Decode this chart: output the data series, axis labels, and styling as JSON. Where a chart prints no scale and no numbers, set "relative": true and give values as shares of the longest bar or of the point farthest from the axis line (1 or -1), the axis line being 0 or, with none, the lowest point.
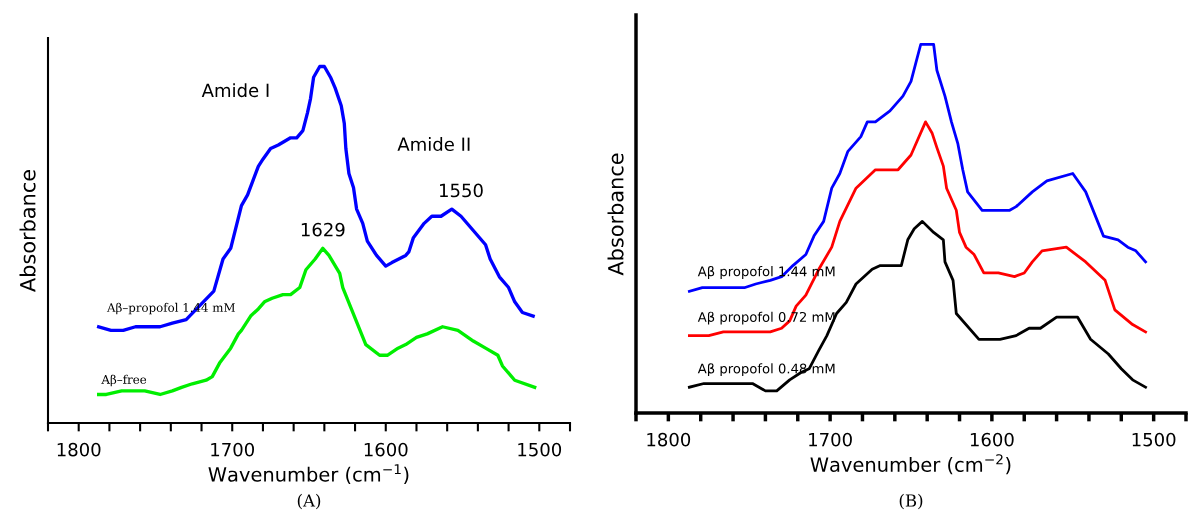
{
  "chart_data": [
    {
      "type": "line",
      "relative": true,
      "xlabel": "Wavenumber (cm$^{−1}$)",
      "ylabel": "Absorbance",
      "xlim": [
        1820,
        1480
      ],
      "xticks": [
        {
          "value": 1820,
          "label": null
        },
        1800,
        {
          "value": 1780,
          "label": null
        },
        {
          "value": 1760,
          "label": null
        },
        {
          "value": 1740,
          "label": null
        },
        {
          "value": 1720,
          "label": null
        },
        1700,
        {
          "value": 1680,
          "label": null
        },
        {
          "value": 1660,
          "label": null
        },
        {
          "value": 1640,
          "label": null
        },
        {
          "value": 1620,
          "label": null
        },
        1600,
        {
          "value": 1580,
          "label": null
        },
        {
          "value": 1560,
          "label": null
        },
        {
          "value": 1540,
          "label": null
        },
        {
          "value": 1520,
          "label": null
        },
        1500,
        {
          "value": 1480,
          "label": null
        }
      ],
      "grid": false,
      "legend": false,
      "series": [
        {
          "name": "Aβ–propofol 1.44 mM",
          "color": "#0000ff",
          "x": [
            1787,
            1779,
            1771,
            1763,
            1747,
            1739,
            1730,
            1721,
            1712,
            1706,
            1701,
            1694,
            1690,
            1683,
            1680,
            1675,
            1670,
            1662,
            1658,
            1654,
            1651,
            1649,
            1647,
            1643,
            1640,
            1636,
            1633,
            1629,
            1627,
            1626,
            1624,
            1621,
            1619,
            1615,
            1612,
            1606,
            1600,
            1596,
            1587,
            1585,
            1582,
            1575,
            1570,
            1564,
            1557,
            1551,
            1543,
            1535,
            1532,
            1526,
            1520,
            1516,
            1511,
            1504
          ],
          "values": [
            0.27,
            0.26,
            0.26,
            0.27,
            0.27,
            0.28,
            0.29,
            0.33,
            0.37,
            0.46,
            0.49,
            0.61,
            0.64,
            0.72,
            0.74,
            0.77,
            0.78,
            0.8,
            0.8,
            0.82,
            0.87,
            0.91,
            0.97,
            1.0,
            1.0,
            0.97,
            0.94,
            0.89,
            0.84,
            0.77,
            0.7,
            0.66,
            0.6,
            0.56,
            0.51,
            0.47,
            0.44,
            0.45,
            0.47,
            0.48,
            0.52,
            0.56,
            0.58,
            0.58,
            0.6,
            0.58,
            0.54,
            0.5,
            0.46,
            0.41,
            0.38,
            0.34,
            0.31,
            0.3
          ]
        },
        {
          "name": "Aβ–free",
          "color": "#00ee00",
          "x": [
            1787,
            1782,
            1772,
            1763,
            1757,
            1747,
            1739,
            1733,
            1726,
            1717,
            1713,
            1708,
            1701,
            1696,
            1694,
            1688,
            1683,
            1679,
            1674,
            1667,
            1662,
            1656,
            1652,
            1646,
            1641,
            1637,
            1630,
            1628,
            1613,
            1604,
            1599,
            1592,
            1587,
            1580,
            1573,
            1563,
            1553,
            1543,
            1535,
            1527,
            1524,
            1516,
            1503
          ],
          "values": [
            0.08,
            0.08,
            0.09,
            0.09,
            0.09,
            0.08,
            0.09,
            0.1,
            0.11,
            0.12,
            0.13,
            0.17,
            0.21,
            0.25,
            0.26,
            0.3,
            0.32,
            0.34,
            0.35,
            0.36,
            0.36,
            0.38,
            0.43,
            0.46,
            0.49,
            0.47,
            0.42,
            0.38,
            0.22,
            0.19,
            0.19,
            0.21,
            0.22,
            0.24,
            0.25,
            0.27,
            0.26,
            0.23,
            0.21,
            0.19,
            0.16,
            0.12,
            0.1
          ]
        }
      ],
      "annotations": [
        "Amide I",
        "Amide II",
        {
          "text": "1629",
          "x": 1641,
          "y": 0.49
        },
        {
          "text": "1550",
          "x": 1551,
          "y": 0.6
        },
        "(A)"
      ]
    },
    {
      "type": "line",
      "relative": true,
      "xlabel": "Wavenumber (cm$^{−2}$)",
      "ylabel": "Absorbance",
      "xlim": [
        1820,
        1480
      ],
      "xticks": [
        {
          "value": 1820,
          "label": null
        },
        1800,
        {
          "value": 1780,
          "label": null
        },
        {
          "value": 1760,
          "label": null
        },
        {
          "value": 1740,
          "label": null
        },
        {
          "value": 1720,
          "label": null
        },
        1700,
        {
          "value": 1680,
          "label": null
        },
        {
          "value": 1660,
          "label": null
        },
        {
          "value": 1640,
          "label": null
        },
        {
          "value": 1620,
          "label": null
        },
        1600,
        {
          "value": 1580,
          "label": null
        },
        {
          "value": 1560,
          "label": null
        },
        {
          "value": 1540,
          "label": null
        },
        {
          "value": 1520,
          "label": null
        },
        1500,
        {
          "value": 1480,
          "label": null
        }
      ],
      "grid": false,
      "legend": false,
      "series": [
        {
          "name": "Aβ propofol 1.44 mM",
          "color": "#0000ff",
          "x": [
            1787,
            1779,
            1761,
            1753,
            1746,
            1737,
            1730,
            1723,
            1715,
            1710,
            1704,
            1699,
            1694,
            1689,
            1681,
            1677,
            1672,
            1663,
            1655,
            1650,
            1647,
            1644,
            1636,
            1634,
            1629,
            1625,
            1621,
            1618,
            1615,
            1606,
            1589,
            1585,
            1575,
            1566,
            1550,
            1542,
            1531,
            1522,
            1516,
            1511,
            1505
          ],
          "values": [
            0.33,
            0.34,
            0.34,
            0.34,
            0.35,
            0.36,
            0.37,
            0.4,
            0.43,
            0.48,
            0.52,
            0.61,
            0.65,
            0.71,
            0.75,
            0.79,
            0.79,
            0.82,
            0.86,
            0.9,
            0.95,
            1.0,
            1.0,
            0.93,
            0.86,
            0.79,
            0.73,
            0.66,
            0.6,
            0.55,
            0.55,
            0.56,
            0.6,
            0.63,
            0.65,
            0.6,
            0.48,
            0.47,
            0.45,
            0.44,
            0.41
          ]
        },
        {
          "name": "Aβ propofol 0.72 mM",
          "color": "#ff0000",
          "x": [
            1787,
            1775,
            1766,
            1757,
            1746,
            1737,
            1730,
            1725,
            1721,
            1715,
            1707,
            1699,
            1694,
            1684,
            1672,
            1658,
            1650,
            1646,
            1641,
            1637,
            1634,
            1630,
            1628,
            1622,
            1620,
            1616,
            1611,
            1605,
            1596,
            1586,
            1580,
            1575,
            1569,
            1554,
            1542,
            1530,
            1524,
            1513,
            1505
          ],
          "values": [
            0.21,
            0.21,
            0.22,
            0.22,
            0.22,
            0.22,
            0.23,
            0.25,
            0.29,
            0.32,
            0.39,
            0.45,
            0.52,
            0.61,
            0.66,
            0.66,
            0.7,
            0.74,
            0.79,
            0.76,
            0.72,
            0.67,
            0.61,
            0.55,
            0.49,
            0.45,
            0.43,
            0.38,
            0.38,
            0.37,
            0.38,
            0.41,
            0.44,
            0.45,
            0.41,
            0.36,
            0.28,
            0.24,
            0.22
          ]
        },
        {
          "name": "Aβ propofol 0.48 mM",
          "color": "#000000",
          "x": [
            1787,
            1778,
            1748,
            1740,
            1733,
            1725,
            1718,
            1713,
            1707,
            1702,
            1696,
            1690,
            1684,
            1674,
            1669,
            1656,
            1652,
            1648,
            1643,
            1636,
            1630,
            1629,
            1624,
            1622,
            1608,
            1602,
            1595,
            1585,
            1577,
            1570,
            1560,
            1547,
            1539,
            1528,
            1520,
            1513,
            1505
          ],
          "values": [
            0.07,
            0.08,
            0.08,
            0.06,
            0.06,
            0.09,
            0.11,
            0.12,
            0.17,
            0.21,
            0.27,
            0.3,
            0.35,
            0.39,
            0.4,
            0.4,
            0.47,
            0.5,
            0.52,
            0.49,
            0.47,
            0.41,
            0.36,
            0.27,
            0.2,
            0.2,
            0.2,
            0.21,
            0.23,
            0.23,
            0.26,
            0.26,
            0.2,
            0.16,
            0.12,
            0.09,
            0.07
          ]
        }
      ],
      "annotations": [
        "(B)"
      ]
    }
  ]
}
